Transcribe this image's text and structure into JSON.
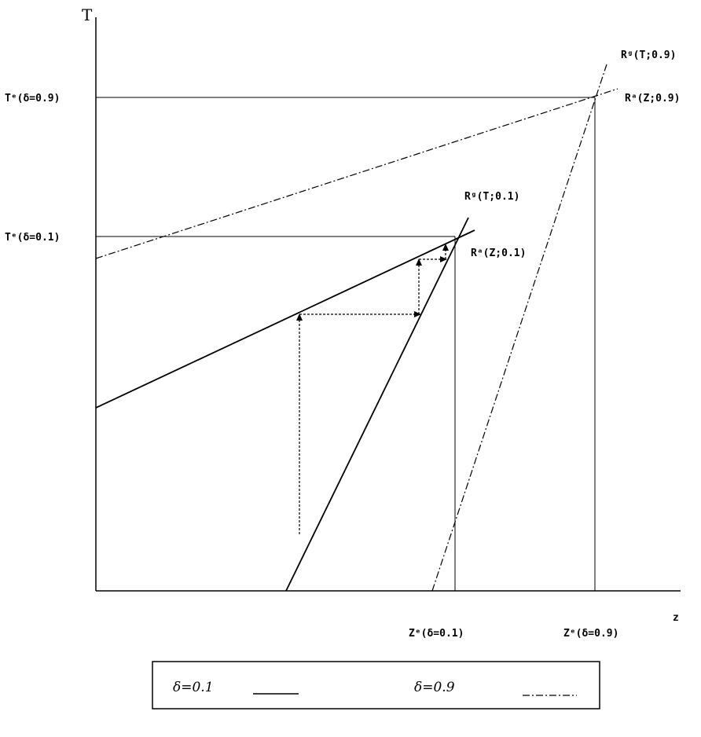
{
  "axes": {
    "y_title": "T",
    "x_title": "z"
  },
  "labels": {
    "te_09": "Tᵉ(δ=0.9)",
    "te_01": "Tᵉ(δ=0.1)",
    "ze_01": "Zᵉ(δ=0.1)",
    "ze_09": "Zᵉ(δ=0.9)",
    "rg_09": "Rᵍ(T;0.9)",
    "ra_09": "Rᵃ(Z;0.9)",
    "rg_01": "Rᵍ(T;0.1)",
    "ra_01": "Rᵃ(Z;0.1)"
  },
  "legend": {
    "item1": "δ=0.1",
    "item2": "δ=0.9"
  },
  "colors": {
    "ink": "#000000",
    "background": "#ffffff"
  }
}
